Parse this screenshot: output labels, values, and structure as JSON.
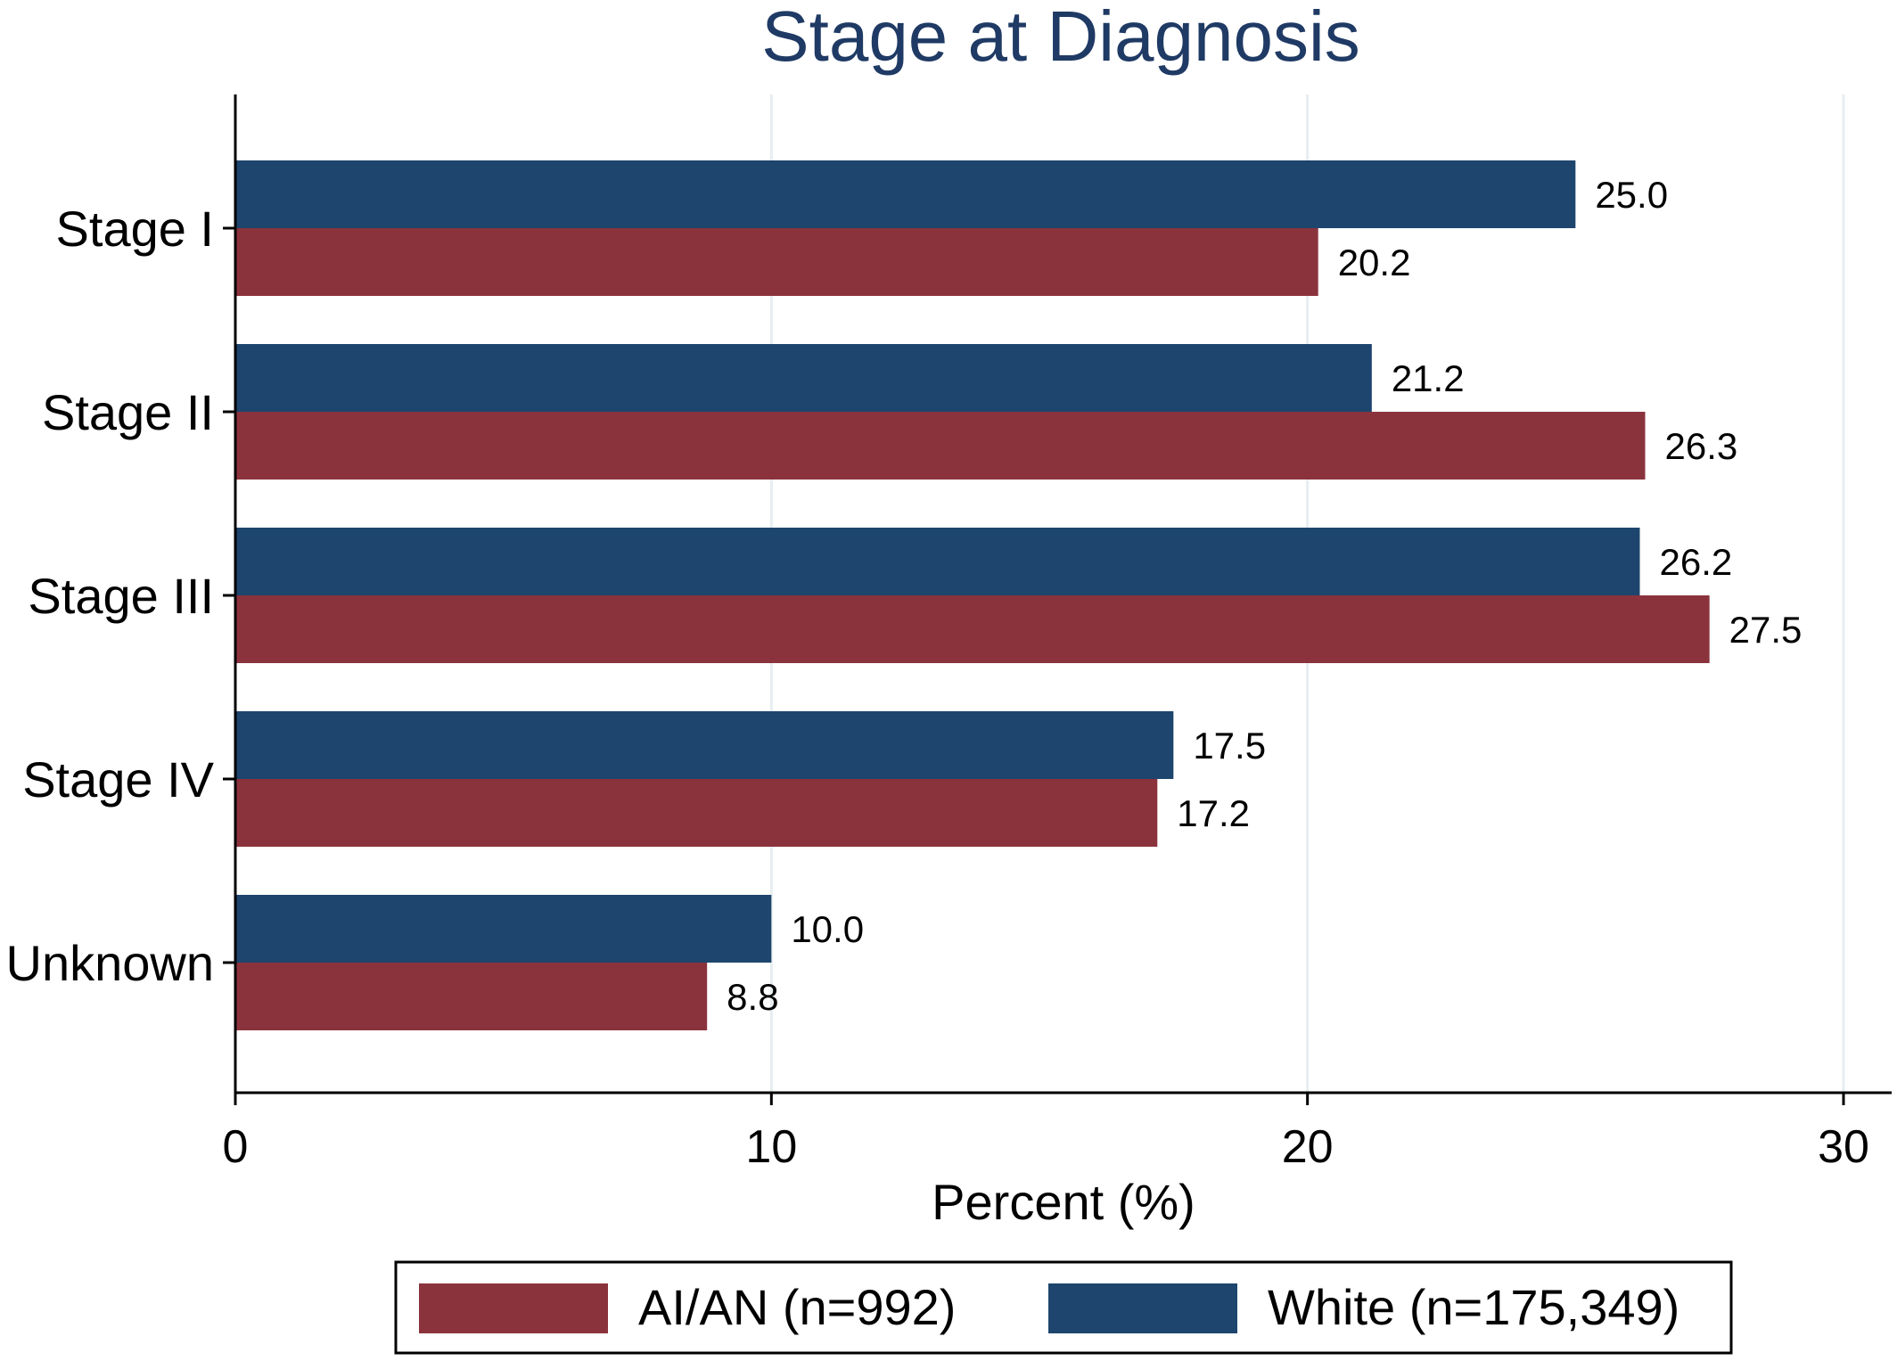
{
  "chart_data": {
    "type": "bar",
    "orientation": "horizontal",
    "title": "Stage at Diagnosis",
    "xlabel": "Percent (%)",
    "ylabel": "",
    "categories": [
      "Stage I",
      "Stage II",
      "Stage III",
      "Stage IV",
      "Unknown"
    ],
    "series": [
      {
        "name": "White (n=175,349)",
        "color": "#1d456d",
        "values": [
          25.0,
          21.2,
          26.2,
          17.5,
          10.0
        ],
        "labels": [
          "25.0",
          "21.2",
          "26.2",
          "17.5",
          "10.0"
        ]
      },
      {
        "name": "AI/AN (n=992)",
        "color": "#8b333d",
        "values": [
          20.2,
          26.3,
          27.5,
          17.2,
          8.8
        ],
        "labels": [
          "20.2",
          "26.3",
          "27.5",
          "17.2",
          "8.8"
        ]
      }
    ],
    "xlim": [
      0,
      30
    ],
    "xticks": [
      0,
      10,
      20,
      30
    ],
    "xtick_labels": [
      "0",
      "10",
      "20",
      "30"
    ],
    "grid": true,
    "grid_color": "#e6eef0",
    "title_color": "#1f3a64",
    "legend": {
      "placement": "bottom",
      "entries": [
        {
          "label": "AI/AN (n=992)",
          "color": "#8b333d"
        },
        {
          "label": "White (n=175,349)",
          "color": "#1d456d"
        }
      ]
    }
  }
}
